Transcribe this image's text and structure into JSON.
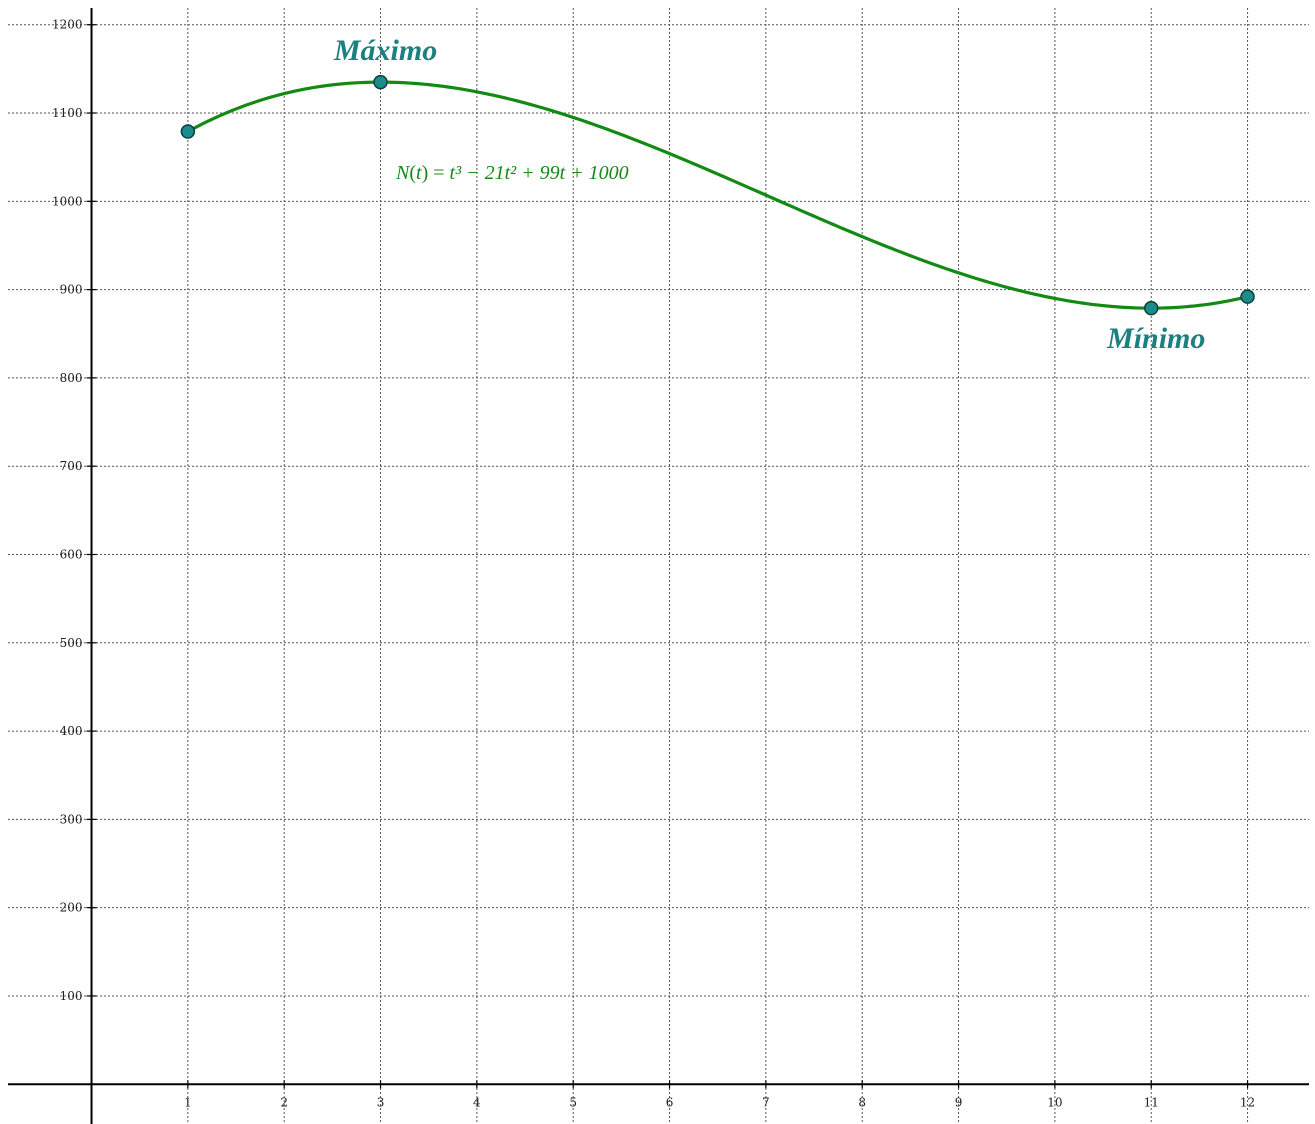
{
  "chart_data": {
    "type": "line",
    "title": "",
    "xlabel": "",
    "ylabel": "",
    "xlim": [
      -0.95,
      12.7
    ],
    "ylim": [
      -45,
      1228
    ],
    "x_ticks": [
      1,
      2,
      3,
      4,
      5,
      6,
      7,
      8,
      9,
      10,
      11,
      12
    ],
    "y_ticks": [
      100,
      200,
      300,
      400,
      500,
      600,
      700,
      800,
      900,
      1000,
      1100,
      1200
    ],
    "grid": true,
    "series": [
      {
        "formula": "N(t) = t³ − 21t² + 99t + 1000",
        "coefficients": [
          1,
          -21,
          99,
          1000
        ],
        "domain": [
          1,
          12
        ],
        "color": "#138a13"
      }
    ],
    "points": [
      {
        "x": 1,
        "y": 1079
      },
      {
        "x": 3,
        "y": 1135
      },
      {
        "x": 11,
        "y": 879
      },
      {
        "x": 12,
        "y": 892
      }
    ],
    "annotations": [
      {
        "text": "Máximo",
        "x": 3,
        "y": 1135
      },
      {
        "text": "Mínimo",
        "x": 11,
        "y": 879
      }
    ],
    "formula_label": {
      "lhs": "N",
      "arg": "t",
      "rhs": "t³ − 21t² + 99t + 1000"
    },
    "colors": {
      "curve": "#138a13",
      "point_fill": "#1a8c8c",
      "annotation": "#1a8080",
      "grid": "#555555"
    }
  }
}
